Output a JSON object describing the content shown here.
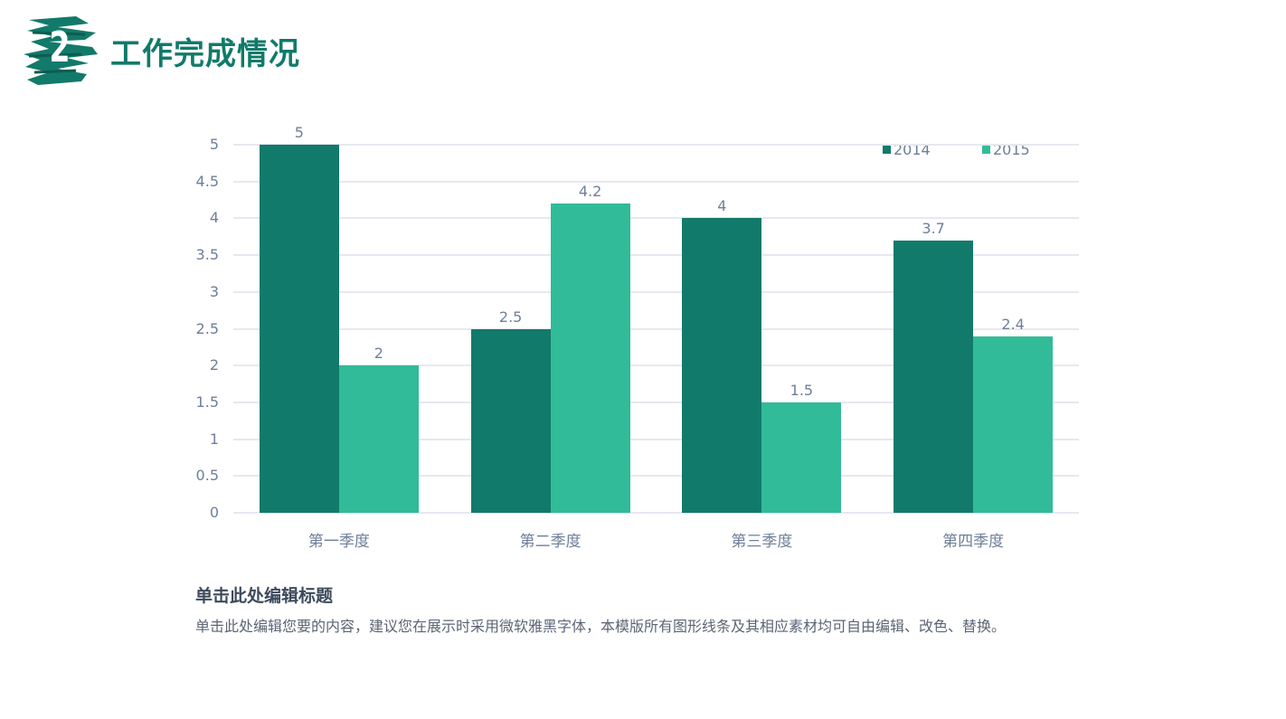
{
  "header": {
    "section_number": "2",
    "title": "工作完成情况"
  },
  "colors": {
    "accent": "#127a6a",
    "series_2014": "#127a6a",
    "series_2015": "#31bb98",
    "text_muted": "#6e7f99",
    "grid": "#e6e9ef"
  },
  "chart_data": {
    "type": "bar",
    "title": "",
    "xlabel": "",
    "ylabel": "",
    "categories": [
      "第一季度",
      "第二季度",
      "第三季度",
      "第四季度"
    ],
    "series": [
      {
        "name": "2014",
        "values": [
          5,
          2.5,
          4,
          3.7
        ],
        "labels": [
          "5",
          "2.5",
          "4",
          "3.7"
        ]
      },
      {
        "name": "2015",
        "values": [
          2,
          4.2,
          1.5,
          2.4
        ],
        "labels": [
          "2",
          "4.2",
          "1.5",
          "2.4"
        ]
      }
    ],
    "yticks": [
      "0",
      "0.5",
      "1",
      "1.5",
      "2",
      "2.5",
      "3",
      "3.5",
      "4",
      "4.5",
      "5"
    ],
    "ylim": [
      0,
      5
    ],
    "grid": true,
    "legend_position": "top-right",
    "data_labels": true
  },
  "description": {
    "title": "单击此处编辑标题",
    "body": "单击此处编辑您要的内容，建议您在展示时采用微软雅黑字体，本模版所有图形线条及其相应素材均可自由编辑、改色、替换。"
  }
}
